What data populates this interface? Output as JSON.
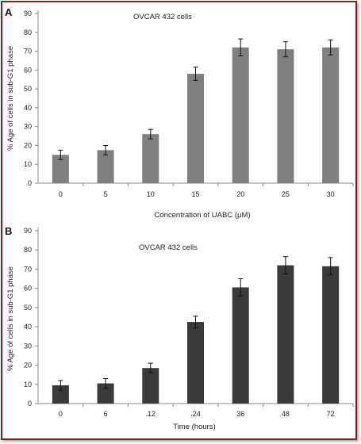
{
  "chart_data": [
    {
      "type": "bar",
      "panel": "A",
      "title": "OVCAR 432 cells",
      "xlabel": "Concentration of  UABC (μM)",
      "ylabel": "% Age of cells in sub-G1 phase",
      "categories": [
        "0",
        "5",
        "10",
        "15",
        "20",
        "25",
        "30"
      ],
      "values": [
        15,
        17.5,
        26,
        58,
        72,
        71,
        72
      ],
      "errors": [
        2.5,
        2.5,
        2.5,
        3.5,
        4.5,
        4,
        4
      ],
      "ylim": [
        0,
        90
      ],
      "yticks": [
        0,
        10,
        20,
        30,
        40,
        50,
        60,
        70,
        80,
        90
      ],
      "bar_color": "#7f7f7f",
      "grid": false
    },
    {
      "type": "bar",
      "panel": "B",
      "title": "OVCAR 432 cells",
      "xlabel": "Time (hours)",
      "ylabel": "% Age of cells in sub-G1 phase",
      "categories": [
        "0",
        "6",
        ".12",
        ".24",
        "36",
        "48",
        "72"
      ],
      "values": [
        9.5,
        10.5,
        18.5,
        42.5,
        60.5,
        72,
        71.5
      ],
      "errors": [
        2.5,
        2.5,
        2.5,
        3,
        4.5,
        4.5,
        4.5
      ],
      "ylim": [
        0,
        90
      ],
      "yticks": [
        0,
        10,
        20,
        30,
        40,
        50,
        60,
        70,
        80,
        90
      ],
      "bar_color": "#3a3a3a",
      "grid": false
    }
  ]
}
